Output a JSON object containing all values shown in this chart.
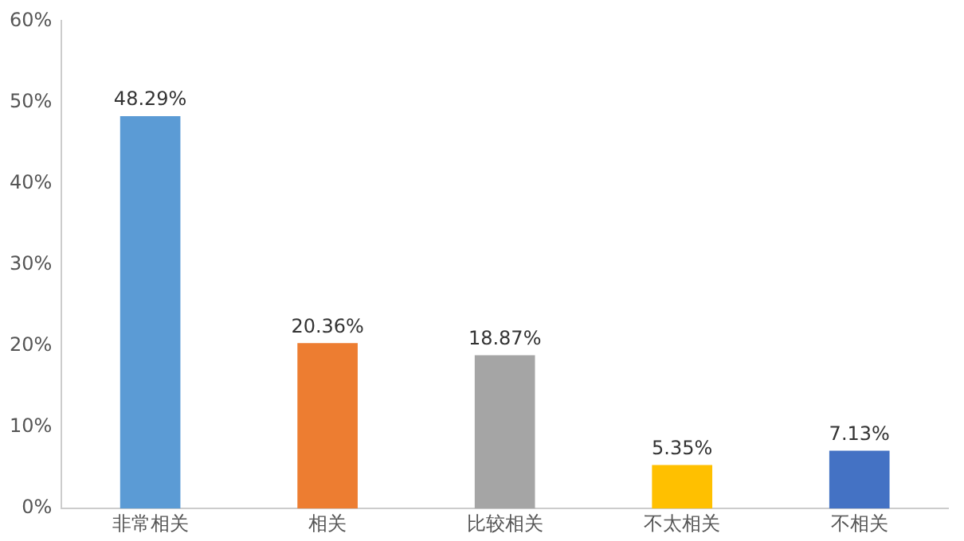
{
  "chart_data": {
    "type": "bar",
    "categories": [
      "非常相关",
      "相关",
      "比较相关",
      "不太相关",
      "不相关"
    ],
    "values": [
      48.29,
      20.36,
      18.87,
      5.35,
      7.13
    ],
    "colors": [
      "#5b9bd5",
      "#ed7d31",
      "#a5a5a5",
      "#ffc000",
      "#4472c4"
    ],
    "value_labels": [
      "48.29%",
      "20.36%",
      "18.87%",
      "5.35%",
      "7.13%"
    ],
    "ylim": [
      0,
      60
    ],
    "yticks": [
      {
        "value": 0,
        "label": "0%"
      },
      {
        "value": 10,
        "label": "10%"
      },
      {
        "value": 20,
        "label": "20%"
      },
      {
        "value": 30,
        "label": "30%"
      },
      {
        "value": 40,
        "label": "40%"
      },
      {
        "value": 50,
        "label": "50%"
      },
      {
        "value": 60,
        "label": "60%"
      }
    ],
    "grid": false,
    "legend": false
  }
}
